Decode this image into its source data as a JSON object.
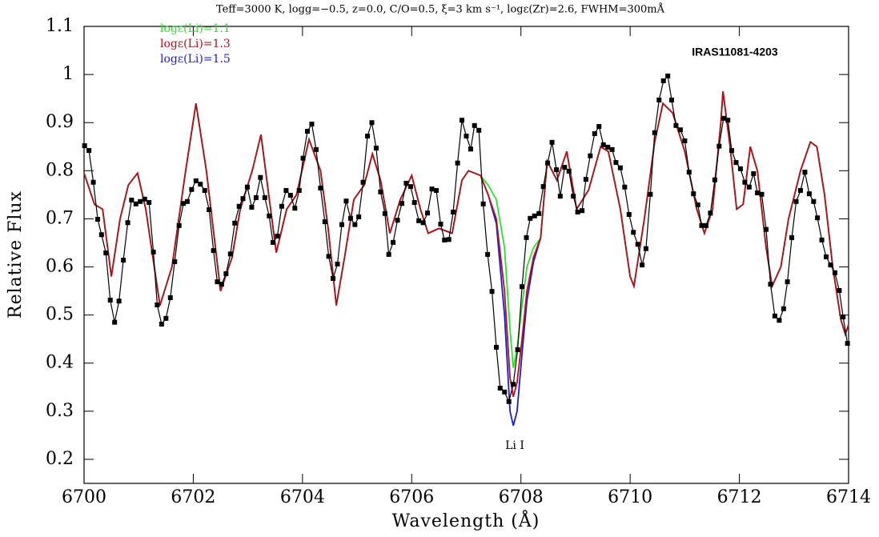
{
  "chart_data": {
    "type": "line",
    "title": "Teff=3000 K, logg=−0.5, z=0.0, C/O=0.5, ξ=3 km s⁻¹, logε(Zr)=2.6, FWHM=300mÅ",
    "x_label": "Wavelength (Å)",
    "y_label": "Relative Flux",
    "annotations": [
      "IRAS11081-4203",
      "Li I"
    ],
    "xlim": [
      6700,
      6714
    ],
    "ylim": [
      0.15,
      1.1
    ],
    "xticks": [
      6700,
      6702,
      6704,
      6706,
      6708,
      6710,
      6712,
      6714
    ],
    "yticks": [
      0.2,
      0.3,
      0.4,
      0.5,
      0.6,
      0.7,
      0.8,
      0.9,
      1,
      1.1
    ],
    "series": [
      {
        "name": "logε(Li)=1.1",
        "color": "#2ee02e",
        "x": [
          6700.0,
          6700.19,
          6700.34,
          6700.5,
          6700.66,
          6700.81,
          6700.98,
          6701.13,
          6701.39,
          6701.61,
          6701.86,
          6702.05,
          6702.24,
          6702.5,
          6702.71,
          6702.86,
          6703.08,
          6703.24,
          6703.37,
          6703.52,
          6703.71,
          6703.89,
          6704.12,
          6704.33,
          6704.47,
          6704.62,
          6704.77,
          6704.94,
          6705.13,
          6705.28,
          6705.43,
          6705.6,
          6705.79,
          6706.0,
          6706.16,
          6706.3,
          6706.5,
          6706.74,
          6706.92,
          6707.04,
          6707.26,
          6707.4,
          6707.55,
          6707.7,
          6707.8,
          6707.86,
          6707.93,
          6708.02,
          6708.11,
          6708.23,
          6708.36,
          6708.48,
          6708.66,
          6708.84,
          6709.02,
          6709.24,
          6709.46,
          6709.6,
          6709.82,
          6710.0,
          6710.07,
          6710.26,
          6710.45,
          6710.6,
          6710.78,
          6711.0,
          6711.22,
          6711.36,
          6711.51,
          6711.66,
          6711.7,
          6711.83,
          6711.95,
          6712.07,
          6712.2,
          6712.33,
          6712.49,
          6712.6,
          6712.76,
          6712.9,
          6713.12,
          6713.3,
          6713.42,
          6713.56,
          6713.71,
          6713.86,
          6713.94,
          6714.0
        ],
        "values": [
          0.795,
          0.73,
          0.72,
          0.58,
          0.7,
          0.77,
          0.795,
          0.72,
          0.52,
          0.6,
          0.8,
          0.94,
          0.8,
          0.55,
          0.62,
          0.72,
          0.8,
          0.875,
          0.76,
          0.63,
          0.72,
          0.75,
          0.865,
          0.8,
          0.68,
          0.52,
          0.62,
          0.74,
          0.77,
          0.835,
          0.78,
          0.67,
          0.74,
          0.79,
          0.72,
          0.67,
          0.68,
          0.67,
          0.78,
          0.8,
          0.79,
          0.77,
          0.74,
          0.64,
          0.47,
          0.39,
          0.43,
          0.52,
          0.6,
          0.64,
          0.66,
          0.82,
          0.78,
          0.84,
          0.72,
          0.76,
          0.85,
          0.84,
          0.72,
          0.58,
          0.56,
          0.7,
          0.86,
          0.94,
          0.92,
          0.84,
          0.72,
          0.67,
          0.72,
          0.9,
          0.965,
          0.85,
          0.72,
          0.73,
          0.85,
          0.8,
          0.64,
          0.56,
          0.6,
          0.7,
          0.8,
          0.86,
          0.85,
          0.75,
          0.6,
          0.49,
          0.46,
          0.48
        ]
      },
      {
        "name": "logε(Li)=1.3",
        "color": "#b3101c",
        "x": [
          6700.0,
          6700.19,
          6700.34,
          6700.5,
          6700.66,
          6700.81,
          6700.98,
          6701.13,
          6701.39,
          6701.61,
          6701.86,
          6702.05,
          6702.24,
          6702.5,
          6702.71,
          6702.86,
          6703.08,
          6703.24,
          6703.37,
          6703.52,
          6703.71,
          6703.89,
          6704.12,
          6704.33,
          6704.47,
          6704.62,
          6704.77,
          6704.94,
          6705.13,
          6705.28,
          6705.43,
          6705.6,
          6705.79,
          6706.0,
          6706.16,
          6706.3,
          6706.5,
          6706.74,
          6706.92,
          6707.04,
          6707.26,
          6707.4,
          6707.55,
          6707.7,
          6707.8,
          6707.86,
          6707.93,
          6708.02,
          6708.11,
          6708.23,
          6708.36,
          6708.48,
          6708.66,
          6708.84,
          6709.02,
          6709.24,
          6709.46,
          6709.6,
          6709.82,
          6710.0,
          6710.07,
          6710.26,
          6710.45,
          6710.6,
          6710.78,
          6711.0,
          6711.22,
          6711.36,
          6711.51,
          6711.66,
          6711.7,
          6711.83,
          6711.95,
          6712.07,
          6712.2,
          6712.33,
          6712.49,
          6712.6,
          6712.76,
          6712.9,
          6713.12,
          6713.3,
          6713.42,
          6713.56,
          6713.71,
          6713.86,
          6713.94,
          6714.0
        ],
        "values": [
          0.795,
          0.73,
          0.72,
          0.58,
          0.7,
          0.77,
          0.795,
          0.72,
          0.52,
          0.6,
          0.8,
          0.94,
          0.8,
          0.55,
          0.62,
          0.72,
          0.8,
          0.875,
          0.76,
          0.63,
          0.72,
          0.75,
          0.865,
          0.8,
          0.68,
          0.52,
          0.62,
          0.74,
          0.77,
          0.835,
          0.78,
          0.67,
          0.74,
          0.79,
          0.72,
          0.67,
          0.68,
          0.67,
          0.78,
          0.8,
          0.79,
          0.75,
          0.7,
          0.55,
          0.37,
          0.33,
          0.36,
          0.45,
          0.55,
          0.62,
          0.66,
          0.82,
          0.78,
          0.84,
          0.72,
          0.76,
          0.85,
          0.84,
          0.72,
          0.58,
          0.56,
          0.7,
          0.86,
          0.94,
          0.92,
          0.84,
          0.72,
          0.67,
          0.72,
          0.9,
          0.965,
          0.85,
          0.72,
          0.73,
          0.85,
          0.8,
          0.64,
          0.56,
          0.6,
          0.7,
          0.8,
          0.86,
          0.85,
          0.75,
          0.6,
          0.49,
          0.46,
          0.48
        ]
      },
      {
        "name": "logε(Li)=1.5",
        "color": "#1c1ccc",
        "x": [
          6700.0,
          6700.19,
          6700.34,
          6700.5,
          6700.66,
          6700.81,
          6700.98,
          6701.13,
          6701.39,
          6701.61,
          6701.86,
          6702.05,
          6702.24,
          6702.5,
          6702.71,
          6702.86,
          6703.08,
          6703.24,
          6703.37,
          6703.52,
          6703.71,
          6703.89,
          6704.12,
          6704.33,
          6704.47,
          6704.62,
          6704.77,
          6704.94,
          6705.13,
          6705.28,
          6705.43,
          6705.6,
          6705.79,
          6706.0,
          6706.16,
          6706.3,
          6706.5,
          6706.74,
          6706.92,
          6707.04,
          6707.26,
          6707.4,
          6707.55,
          6707.7,
          6707.8,
          6707.86,
          6707.93,
          6708.02,
          6708.11,
          6708.23,
          6708.36,
          6708.48,
          6708.66,
          6708.84,
          6709.02,
          6709.24,
          6709.46,
          6709.6,
          6709.82,
          6710.0,
          6710.07,
          6710.26,
          6710.45,
          6710.6,
          6710.78,
          6711.0,
          6711.22,
          6711.36,
          6711.51,
          6711.66,
          6711.7,
          6711.83,
          6711.95,
          6712.07,
          6712.2,
          6712.33,
          6712.49,
          6712.6,
          6712.76,
          6712.9,
          6713.12,
          6713.3,
          6713.42,
          6713.56,
          6713.71,
          6713.86,
          6713.94,
          6714.0
        ],
        "values": [
          0.795,
          0.73,
          0.72,
          0.58,
          0.7,
          0.77,
          0.795,
          0.72,
          0.52,
          0.6,
          0.8,
          0.94,
          0.8,
          0.55,
          0.62,
          0.72,
          0.8,
          0.875,
          0.76,
          0.63,
          0.72,
          0.75,
          0.865,
          0.8,
          0.68,
          0.52,
          0.62,
          0.74,
          0.77,
          0.835,
          0.78,
          0.67,
          0.74,
          0.79,
          0.72,
          0.67,
          0.68,
          0.67,
          0.78,
          0.8,
          0.79,
          0.75,
          0.69,
          0.5,
          0.3,
          0.27,
          0.3,
          0.42,
          0.53,
          0.61,
          0.66,
          0.82,
          0.78,
          0.84,
          0.72,
          0.76,
          0.85,
          0.84,
          0.72,
          0.58,
          0.56,
          0.7,
          0.86,
          0.94,
          0.92,
          0.84,
          0.72,
          0.67,
          0.72,
          0.9,
          0.965,
          0.85,
          0.72,
          0.73,
          0.85,
          0.8,
          0.64,
          0.56,
          0.6,
          0.7,
          0.8,
          0.86,
          0.85,
          0.75,
          0.6,
          0.49,
          0.46,
          0.48
        ]
      },
      {
        "color": "#000000",
        "markers": true,
        "x": [
          6700.01,
          6700.09,
          6700.17,
          6700.25,
          6700.32,
          6700.4,
          6700.48,
          6700.56,
          6700.64,
          6700.72,
          6700.8,
          6700.87,
          6700.95,
          6701.03,
          6701.11,
          6701.19,
          6701.27,
          6701.34,
          6701.42,
          6701.5,
          6701.58,
          6701.66,
          6701.74,
          6701.82,
          6701.89,
          6701.97,
          6702.05,
          6702.13,
          6702.21,
          6702.29,
          6702.37,
          6702.44,
          6702.52,
          6702.6,
          6702.68,
          6702.76,
          6702.84,
          6702.91,
          6702.99,
          6703.07,
          6703.15,
          6703.23,
          6703.31,
          6703.39,
          6703.46,
          6703.54,
          6703.62,
          6703.7,
          6703.78,
          6703.86,
          6703.94,
          6704.01,
          6704.09,
          6704.17,
          6704.25,
          6704.33,
          6704.41,
          6704.48,
          6704.56,
          6704.64,
          6704.72,
          6704.8,
          6704.88,
          6704.96,
          6705.03,
          6705.11,
          6705.19,
          6705.27,
          6705.35,
          6705.43,
          6705.51,
          6705.58,
          6705.66,
          6705.74,
          6705.82,
          6705.9,
          6705.98,
          6706.05,
          6706.13,
          6706.21,
          6706.29,
          6706.37,
          6706.45,
          6706.53,
          6706.6,
          6706.68,
          6706.76,
          6706.84,
          6706.92,
          6707.0,
          6707.08,
          6707.15,
          6707.23,
          6707.31,
          6707.39,
          6707.47,
          6707.55,
          6707.62,
          6707.7,
          6707.78,
          6707.86,
          6707.94,
          6708.02,
          6708.1,
          6708.17,
          6708.25,
          6708.33,
          6708.41,
          6708.49,
          6708.57,
          6708.65,
          6708.72,
          6708.8,
          6708.88,
          6708.96,
          6709.04,
          6709.12,
          6709.19,
          6709.27,
          6709.35,
          6709.43,
          6709.51,
          6709.59,
          6709.67,
          6709.74,
          6709.82,
          6709.9,
          6709.98,
          6710.06,
          6710.14,
          6710.22,
          6710.29,
          6710.37,
          6710.45,
          6710.53,
          6710.61,
          6710.69,
          6710.76,
          6710.84,
          6710.92,
          6711.0,
          6711.08,
          6711.16,
          6711.24,
          6711.31,
          6711.39,
          6711.47,
          6711.55,
          6711.63,
          6711.71,
          6711.79,
          6711.86,
          6711.94,
          6712.02,
          6712.1,
          6712.18,
          6712.26,
          6712.33,
          6712.41,
          6712.49,
          6712.57,
          6712.65,
          6712.73,
          6712.81,
          6712.88,
          6712.96,
          6713.04,
          6713.12,
          6713.2,
          6713.28,
          6713.36,
          6713.43,
          6713.51,
          6713.59,
          6713.67,
          6713.75,
          6713.83,
          6713.9,
          6713.98
        ],
        "values": [
          0.852,
          0.842,
          0.776,
          0.699,
          0.667,
          0.629,
          0.531,
          0.485,
          0.529,
          0.614,
          0.692,
          0.739,
          0.731,
          0.736,
          0.741,
          0.734,
          0.631,
          0.521,
          0.481,
          0.493,
          0.536,
          0.611,
          0.686,
          0.732,
          0.736,
          0.761,
          0.779,
          0.772,
          0.759,
          0.719,
          0.634,
          0.569,
          0.564,
          0.586,
          0.627,
          0.691,
          0.726,
          0.742,
          0.766,
          0.724,
          0.744,
          0.786,
          0.744,
          0.706,
          0.651,
          0.664,
          0.726,
          0.759,
          0.749,
          0.722,
          0.759,
          0.826,
          0.882,
          0.897,
          0.844,
          0.764,
          0.694,
          0.622,
          0.576,
          0.606,
          0.688,
          0.737,
          0.701,
          0.688,
          0.704,
          0.776,
          0.872,
          0.9,
          0.847,
          0.756,
          0.711,
          0.626,
          0.651,
          0.697,
          0.732,
          0.774,
          0.767,
          0.734,
          0.696,
          0.692,
          0.712,
          0.762,
          0.759,
          0.689,
          0.656,
          0.657,
          0.714,
          0.816,
          0.905,
          0.872,
          0.845,
          0.894,
          0.884,
          0.731,
          0.626,
          0.549,
          0.433,
          0.348,
          0.34,
          0.32,
          0.356,
          0.428,
          0.559,
          0.661,
          0.701,
          0.706,
          0.711,
          0.767,
          0.816,
          0.859,
          0.802,
          0.747,
          0.807,
          0.799,
          0.747,
          0.714,
          0.717,
          0.782,
          0.831,
          0.877,
          0.892,
          0.854,
          0.849,
          0.844,
          0.817,
          0.806,
          0.766,
          0.709,
          0.672,
          0.647,
          0.604,
          0.638,
          0.751,
          0.879,
          0.947,
          0.987,
          0.997,
          0.947,
          0.894,
          0.885,
          0.862,
          0.797,
          0.752,
          0.729,
          0.686,
          0.686,
          0.712,
          0.781,
          0.851,
          0.909,
          0.905,
          0.842,
          0.817,
          0.804,
          0.776,
          0.766,
          0.794,
          0.754,
          0.751,
          0.678,
          0.564,
          0.498,
          0.489,
          0.513,
          0.569,
          0.661,
          0.736,
          0.759,
          0.797,
          0.752,
          0.736,
          0.702,
          0.656,
          0.621,
          0.604,
          0.588,
          0.551,
          0.496,
          0.441
        ]
      }
    ]
  }
}
